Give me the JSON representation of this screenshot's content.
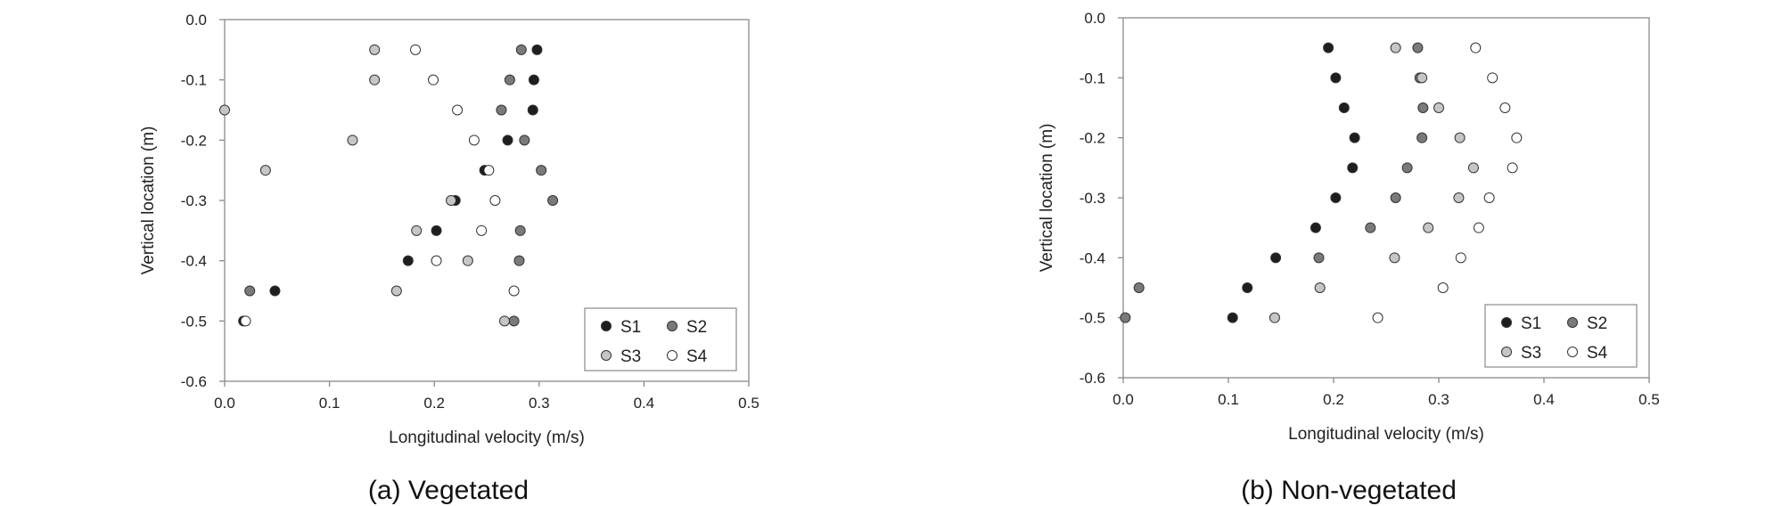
{
  "colors": {
    "S1": "#1e1e1e",
    "S2": "#7a7a7a",
    "S3": "#c6c6c6",
    "S4": "#ffffff",
    "axis": "#8a8a8a"
  },
  "chart_data": [
    {
      "type": "scatter",
      "caption": "(a) Vegetated",
      "xlabel": "Longitudinal velocity (m/s)",
      "ylabel": "Vertical location (m)",
      "xlim": [
        0,
        0.5
      ],
      "ylim": [
        -0.6,
        0
      ],
      "xticks": [
        "0.0",
        "0.1",
        "0.2",
        "0.3",
        "0.4",
        "0.5"
      ],
      "yticks": [
        "0.0",
        "-0.1",
        "-0.2",
        "-0.3",
        "-0.4",
        "-0.5",
        "-0.6"
      ],
      "grid": false,
      "legend_position": "bottom-right",
      "series": [
        {
          "name": "S1",
          "color_key": "S1",
          "points": [
            [
              0.298,
              -0.05
            ],
            [
              0.295,
              -0.1
            ],
            [
              0.294,
              -0.15
            ],
            [
              0.27,
              -0.2
            ],
            [
              0.248,
              -0.25
            ],
            [
              0.22,
              -0.3
            ],
            [
              0.202,
              -0.35
            ],
            [
              0.175,
              -0.4
            ],
            [
              0.048,
              -0.45
            ],
            [
              0.018,
              -0.5
            ]
          ]
        },
        {
          "name": "S2",
          "color_key": "S2",
          "points": [
            [
              0.283,
              -0.05
            ],
            [
              0.272,
              -0.1
            ],
            [
              0.264,
              -0.15
            ],
            [
              0.286,
              -0.2
            ],
            [
              0.302,
              -0.25
            ],
            [
              0.313,
              -0.3
            ],
            [
              0.282,
              -0.35
            ],
            [
              0.281,
              -0.4
            ],
            [
              0.024,
              -0.45
            ],
            [
              0.276,
              -0.5
            ]
          ]
        },
        {
          "name": "S3",
          "color_key": "S3",
          "points": [
            [
              0.143,
              -0.05
            ],
            [
              0.143,
              -0.1
            ],
            [
              0.0,
              -0.15
            ],
            [
              0.122,
              -0.2
            ],
            [
              0.039,
              -0.25
            ],
            [
              0.216,
              -0.3
            ],
            [
              0.183,
              -0.35
            ],
            [
              0.232,
              -0.4
            ],
            [
              0.164,
              -0.45
            ],
            [
              0.267,
              -0.5
            ]
          ]
        },
        {
          "name": "S4",
          "color_key": "S4",
          "points": [
            [
              0.182,
              -0.05
            ],
            [
              0.199,
              -0.1
            ],
            [
              0.222,
              -0.15
            ],
            [
              0.238,
              -0.2
            ],
            [
              0.252,
              -0.25
            ],
            [
              0.258,
              -0.3
            ],
            [
              0.245,
              -0.35
            ],
            [
              0.202,
              -0.4
            ],
            [
              0.276,
              -0.45
            ],
            [
              0.02,
              -0.5
            ]
          ]
        }
      ]
    },
    {
      "type": "scatter",
      "caption": "(b) Non-vegetated",
      "xlabel": "Longitudinal velocity (m/s)",
      "ylabel": "Vertical location (m)",
      "xlim": [
        0,
        0.5
      ],
      "ylim": [
        -0.6,
        0
      ],
      "xticks": [
        "0.0",
        "0.1",
        "0.2",
        "0.3",
        "0.4",
        "0.5"
      ],
      "yticks": [
        "0.0",
        "-0.1",
        "-0.2",
        "-0.3",
        "-0.4",
        "-0.5",
        "-0.6"
      ],
      "grid": false,
      "legend_position": "bottom-right",
      "series": [
        {
          "name": "S1",
          "color_key": "S1",
          "points": [
            [
              0.195,
              -0.05
            ],
            [
              0.202,
              -0.1
            ],
            [
              0.21,
              -0.15
            ],
            [
              0.22,
              -0.2
            ],
            [
              0.218,
              -0.25
            ],
            [
              0.202,
              -0.3
            ],
            [
              0.183,
              -0.35
            ],
            [
              0.145,
              -0.4
            ],
            [
              0.118,
              -0.45
            ],
            [
              0.104,
              -0.5
            ]
          ]
        },
        {
          "name": "S2",
          "color_key": "S2",
          "points": [
            [
              0.28,
              -0.05
            ],
            [
              0.282,
              -0.1
            ],
            [
              0.285,
              -0.15
            ],
            [
              0.284,
              -0.2
            ],
            [
              0.27,
              -0.25
            ],
            [
              0.259,
              -0.3
            ],
            [
              0.235,
              -0.35
            ],
            [
              0.186,
              -0.4
            ],
            [
              0.015,
              -0.45
            ],
            [
              0.002,
              -0.5
            ]
          ]
        },
        {
          "name": "S3",
          "color_key": "S3",
          "points": [
            [
              0.259,
              -0.05
            ],
            [
              0.284,
              -0.1
            ],
            [
              0.3,
              -0.15
            ],
            [
              0.32,
              -0.2
            ],
            [
              0.333,
              -0.25
            ],
            [
              0.319,
              -0.3
            ],
            [
              0.29,
              -0.35
            ],
            [
              0.258,
              -0.4
            ],
            [
              0.187,
              -0.45
            ],
            [
              0.144,
              -0.5
            ]
          ]
        },
        {
          "name": "S4",
          "color_key": "S4",
          "points": [
            [
              0.335,
              -0.05
            ],
            [
              0.351,
              -0.1
            ],
            [
              0.363,
              -0.15
            ],
            [
              0.374,
              -0.2
            ],
            [
              0.37,
              -0.25
            ],
            [
              0.348,
              -0.3
            ],
            [
              0.338,
              -0.35
            ],
            [
              0.321,
              -0.4
            ],
            [
              0.304,
              -0.45
            ],
            [
              0.242,
              -0.5
            ]
          ]
        }
      ]
    }
  ]
}
